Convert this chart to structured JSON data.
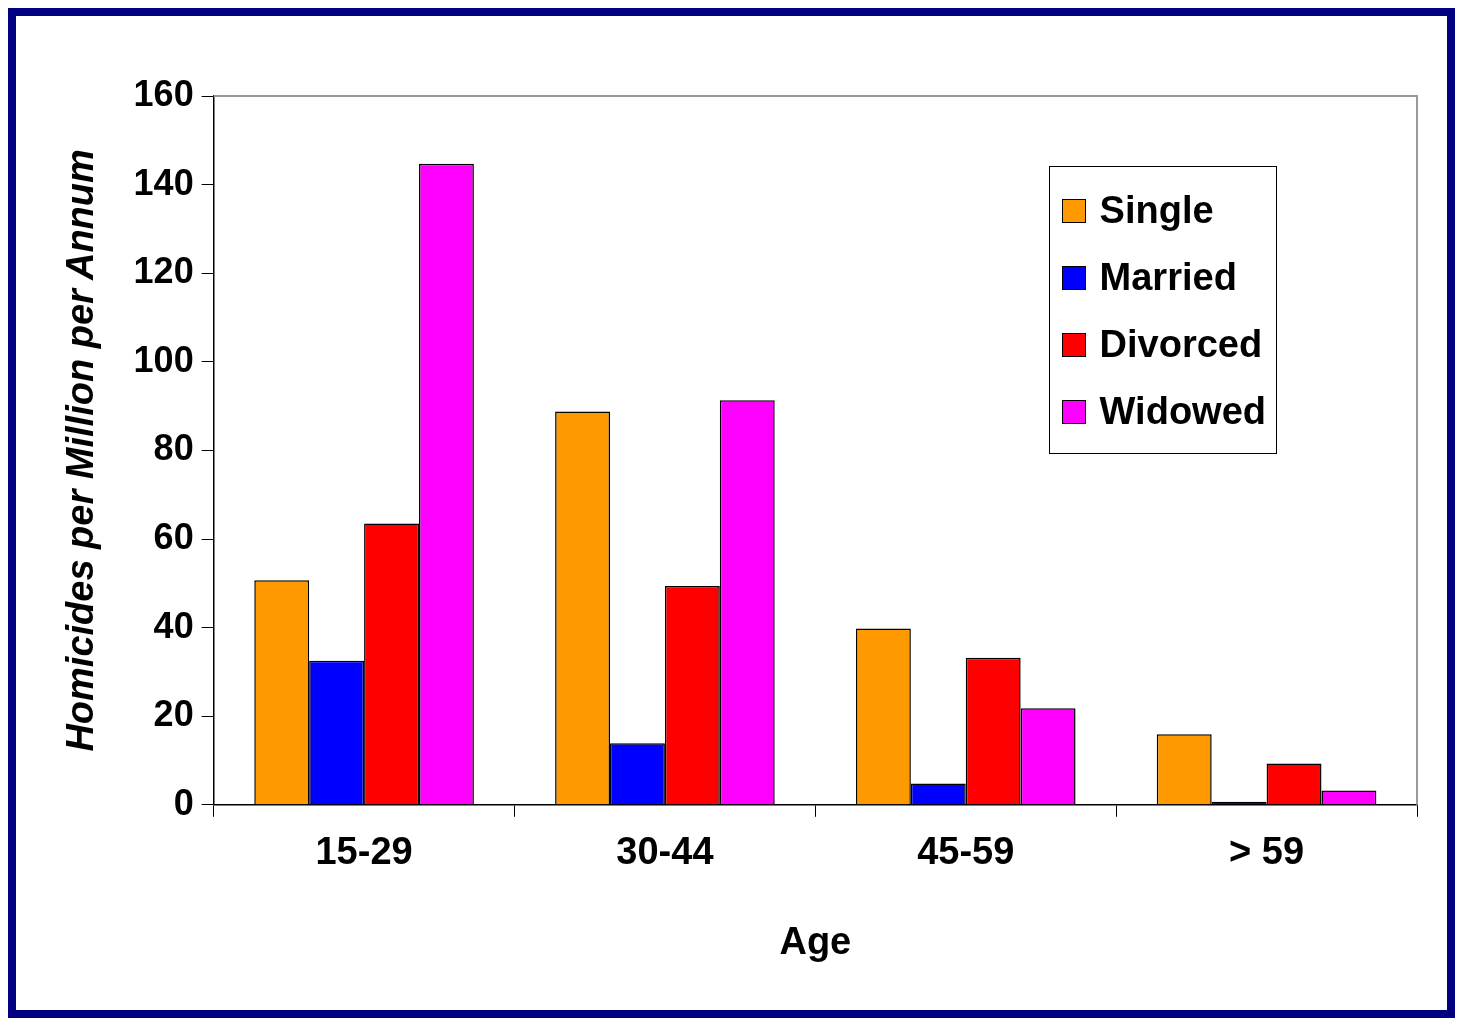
{
  "chart_data": {
    "type": "bar",
    "xlabel": "Age",
    "ylabel": "Homicides per Million per Annum",
    "categories": [
      "15-29",
      "30-44",
      "45-59",
      "> 59"
    ],
    "series": [
      {
        "name": "Single",
        "color": "#ff9900",
        "values": [
          50.7,
          88.8,
          39.8,
          15.9
        ]
      },
      {
        "name": "Married",
        "color": "#0000ff",
        "values": [
          32.5,
          13.9,
          4.8,
          0.7
        ]
      },
      {
        "name": "Divorced",
        "color": "#ff0000",
        "values": [
          63.5,
          49.4,
          33.2,
          9.3
        ]
      },
      {
        "name": "Widowed",
        "color": "#ff00ff",
        "values": [
          144.7,
          91.3,
          21.8,
          3.2
        ]
      }
    ],
    "ylim": [
      0,
      160
    ],
    "yticks": [
      0,
      20,
      40,
      60,
      80,
      100,
      120,
      140,
      160
    ],
    "grid": false,
    "legend": "top right"
  }
}
